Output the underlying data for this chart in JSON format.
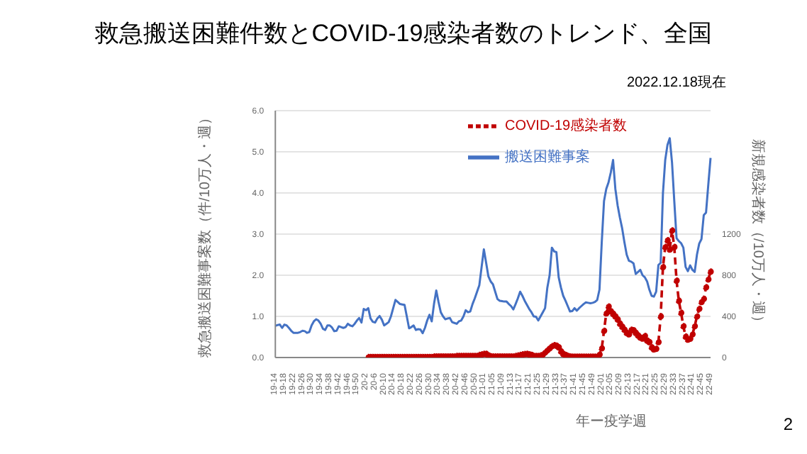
{
  "chart_data": {
    "type": "line",
    "title": "救急搬送困難件数とCOVID-19感染者数のトレンド、全国",
    "subtitle": "2022.12.18現在",
    "xlabel": "年ー疫学週",
    "ylabel": "救急搬送困難事案数（件/10万人・週）",
    "y2label": "新規感染者数（/10万人・週）",
    "annotations": [
      "2"
    ],
    "categories": [
      "19-14",
      null,
      null,
      null,
      "19-18",
      null,
      null,
      null,
      "19-22",
      null,
      null,
      null,
      "19-26",
      null,
      null,
      null,
      "19-30",
      null,
      null,
      null,
      "19-34",
      null,
      null,
      null,
      "19-38",
      null,
      null,
      null,
      "19-42",
      null,
      null,
      null,
      "19-46",
      null,
      null,
      null,
      "19-50",
      null,
      null,
      null,
      "20-2",
      null,
      null,
      null,
      "20-6",
      null,
      null,
      null,
      "20-10",
      null,
      null,
      null,
      "20-14",
      null,
      null,
      null,
      "20-18",
      null,
      null,
      null,
      "20-22",
      null,
      null,
      null,
      "20-26",
      null,
      null,
      null,
      "20-30",
      null,
      null,
      null,
      "20-34",
      null,
      null,
      null,
      "20-38",
      null,
      null,
      null,
      "20-42",
      null,
      null,
      null,
      "20-46",
      null,
      null,
      null,
      "20-50",
      null,
      null,
      null,
      "21-01",
      null,
      null,
      null,
      "21-05",
      null,
      null,
      null,
      "21-09",
      null,
      null,
      null,
      "21-13",
      null,
      null,
      null,
      "21-17",
      null,
      null,
      null,
      "21-21",
      null,
      null,
      null,
      "21-25",
      null,
      null,
      null,
      "21-29",
      null,
      null,
      null,
      "21-33",
      null,
      null,
      null,
      "21-37",
      null,
      null,
      null,
      "21-41",
      null,
      null,
      null,
      "21-45",
      null,
      null,
      null,
      "21-49",
      null,
      null,
      null,
      "22-01",
      null,
      null,
      null,
      "22-05",
      null,
      null,
      null,
      "22-09",
      null,
      null,
      null,
      "22-13",
      null,
      null,
      null,
      "22-17",
      null,
      null,
      null,
      "22-21",
      null,
      null,
      null,
      "22-25",
      null,
      null,
      null,
      "22-29",
      null,
      null,
      null,
      "22-33",
      null,
      null,
      null,
      "22-37",
      null,
      null,
      null,
      "22-41",
      null,
      null,
      null,
      "22-45",
      null,
      null,
      null,
      "22-49"
    ],
    "series": [
      {
        "name": "搬送困難事案",
        "color": "#4472c4",
        "marker": "none",
        "line_style": "solid",
        "values": [
          0.77,
          0.79,
          0.8,
          0.72,
          0.8,
          0.78,
          0.72,
          0.65,
          0.6,
          0.6,
          0.6,
          0.62,
          0.65,
          0.64,
          0.6,
          0.62,
          0.78,
          0.88,
          0.93,
          0.9,
          0.82,
          0.7,
          0.67,
          0.78,
          0.78,
          0.73,
          0.64,
          0.65,
          0.76,
          0.74,
          0.72,
          0.74,
          0.82,
          0.78,
          0.76,
          0.82,
          0.9,
          0.96,
          0.85,
          1.18,
          1.15,
          1.2,
          0.95,
          0.87,
          0.85,
          0.95,
          1.01,
          0.92,
          0.78,
          0.82,
          0.86,
          1.0,
          1.2,
          1.4,
          1.35,
          1.3,
          1.29,
          1.28,
          1.0,
          0.71,
          0.74,
          0.78,
          0.67,
          0.69,
          0.68,
          0.59,
          0.72,
          0.9,
          1.04,
          0.88,
          1.3,
          1.63,
          1.35,
          1.1,
          1.0,
          0.93,
          0.95,
          0.96,
          0.86,
          0.84,
          0.82,
          0.88,
          0.9,
          1.0,
          1.15,
          1.1,
          1.12,
          1.3,
          1.44,
          1.6,
          1.76,
          2.2,
          2.63,
          2.3,
          1.97,
          1.85,
          1.78,
          1.6,
          1.42,
          1.38,
          1.37,
          1.36,
          1.36,
          1.3,
          1.25,
          1.17,
          1.3,
          1.44,
          1.6,
          1.5,
          1.38,
          1.28,
          1.18,
          1.1,
          1.0,
          0.99,
          0.9,
          1.0,
          1.1,
          1.2,
          1.7,
          2.0,
          2.67,
          2.58,
          2.56,
          1.95,
          1.7,
          1.5,
          1.38,
          1.25,
          1.12,
          1.13,
          1.2,
          1.14,
          1.2,
          1.25,
          1.3,
          1.34,
          1.33,
          1.32,
          1.33,
          1.35,
          1.4,
          1.65,
          2.8,
          3.8,
          4.1,
          4.26,
          4.5,
          4.8,
          4.1,
          3.7,
          3.4,
          3.14,
          2.8,
          2.5,
          2.35,
          2.33,
          2.29,
          2.03,
          2.08,
          2.13,
          2.0,
          1.95,
          1.85,
          1.65,
          1.5,
          1.48,
          1.6,
          2.25,
          2.3,
          4.0,
          4.8,
          5.17,
          5.33,
          4.74,
          3.8,
          2.9,
          2.83,
          2.78,
          2.67,
          2.2,
          2.1,
          2.24,
          2.13,
          2.08,
          2.5,
          2.77,
          2.88,
          3.46,
          3.52,
          4.2,
          4.85
        ]
      },
      {
        "name": "COVID-19感染者数",
        "color": "#c00000",
        "axis": "y2",
        "marker": "circle",
        "line_style": "dashed",
        "values": [
          null,
          null,
          null,
          null,
          null,
          null,
          null,
          null,
          null,
          null,
          null,
          null,
          null,
          null,
          null,
          null,
          null,
          null,
          null,
          null,
          null,
          null,
          null,
          null,
          null,
          null,
          null,
          null,
          null,
          null,
          null,
          null,
          null,
          null,
          null,
          null,
          null,
          null,
          null,
          null,
          null,
          5,
          5,
          5,
          5,
          5,
          5,
          5,
          5,
          5,
          5,
          5,
          5,
          5,
          5,
          5,
          5,
          5,
          5,
          5,
          5,
          5,
          5,
          5,
          5,
          5,
          5,
          5,
          5,
          5,
          10,
          10,
          10,
          10,
          10,
          10,
          10,
          10,
          10,
          10,
          15,
          15,
          15,
          15,
          15,
          15,
          15,
          15,
          15,
          15,
          25,
          30,
          35,
          35,
          20,
          12,
          10,
          10,
          10,
          10,
          10,
          10,
          10,
          10,
          10,
          10,
          15,
          20,
          25,
          30,
          33,
          35,
          30,
          25,
          15,
          15,
          15,
          20,
          30,
          50,
          70,
          90,
          110,
          120,
          115,
          100,
          60,
          35,
          25,
          15,
          10,
          8,
          8,
          8,
          8,
          8,
          8,
          8,
          8,
          8,
          8,
          8,
          8,
          30,
          90,
          260,
          430,
          496,
          450,
          425,
          400,
          370,
          330,
          300,
          270,
          240,
          226,
          270,
          265,
          240,
          215,
          195,
          185,
          210,
          165,
          150,
          100,
          80,
          85,
          150,
          400,
          880,
          1075,
          1140,
          1050,
          1235,
          1075,
          748,
          552,
          435,
          305,
          204,
          174,
          183,
          226,
          305,
          400,
          474,
          540,
          570,
          683,
          760,
          835
        ]
      }
    ],
    "ylim": [
      0,
      6
    ],
    "yticks": [
      {
        "value": 0,
        "label": "0.0"
      },
      {
        "value": 1,
        "label": "1.0"
      },
      {
        "value": 2,
        "label": "2.0"
      },
      {
        "value": 3,
        "label": "3.0"
      },
      {
        "value": 4,
        "label": "4.0"
      },
      {
        "value": 5,
        "label": "5.0"
      },
      {
        "value": 6,
        "label": "6.0"
      }
    ],
    "y2lim": [
      0,
      2400
    ],
    "y2ticks": [
      0,
      400,
      800,
      1200
    ],
    "grid": "y",
    "legend": "top right"
  }
}
